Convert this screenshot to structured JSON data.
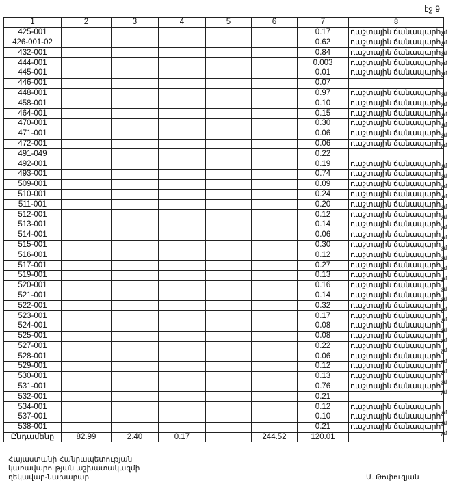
{
  "page_number": "էջ 9",
  "table": {
    "headers": [
      "1",
      "2",
      "3",
      "4",
      "5",
      "6",
      "7",
      "8"
    ],
    "rows": [
      {
        "id": "425-001",
        "c7": "0.17",
        "c8": "դաշտային ճանապարհ",
        "mark": "չմ"
      },
      {
        "id": "426-001-02",
        "c7": "0.62",
        "c8": "դաշտային ճանապարհ",
        "mark": "չմ"
      },
      {
        "id": "432-001",
        "c7": "0.84",
        "c8": "դաշտային ճանապարհ",
        "mark": "չմ"
      },
      {
        "id": "444-001",
        "c7": "0.003",
        "c8": "դաշտային ճանապարհ",
        "mark": "չմ"
      },
      {
        "id": "445-001",
        "c7": "0.01",
        "c8": "դաշտային ճանապարհ",
        "mark": "չմ"
      },
      {
        "id": "446-001",
        "c7": "0.07",
        "c8": "",
        "mark": ""
      },
      {
        "id": "448-001",
        "c7": "0.97",
        "c8": "դաշտային ճանապարհ",
        "mark": "չմ"
      },
      {
        "id": "458-001",
        "c7": "0.10",
        "c8": "դաշտային ճանապարհ",
        "mark": "չմ"
      },
      {
        "id": "464-001",
        "c7": "0.15",
        "c8": "դաշտային ճանապարհ",
        "mark": "չմ"
      },
      {
        "id": "470-001",
        "c7": "0.30",
        "c8": "դաշտային ճանապարհ",
        "mark": "չմ"
      },
      {
        "id": "471-001",
        "c7": "0.06",
        "c8": "դաշտային ճանապարհ",
        "mark": "չմ"
      },
      {
        "id": "472-001",
        "c7": "0.06",
        "c8": "դաշտային ճանապարհ",
        "mark": "չմ"
      },
      {
        "id": "491-049",
        "c7": "0.22",
        "c8": "",
        "mark": ""
      },
      {
        "id": "492-001",
        "c7": "0.19",
        "c8": "դաշտային ճանապարհ",
        "mark": "չմ"
      },
      {
        "id": "493-001",
        "c7": "0.74",
        "c8": "դաշտային ճանապարհ",
        "mark": "չմ"
      },
      {
        "id": "509-001",
        "c7": "0.09",
        "c8": "դաշտային ճանապարհ",
        "mark": "չմ"
      },
      {
        "id": "510-001",
        "c7": "0.24",
        "c8": "դաշտային ճանապարհ",
        "mark": "չմ"
      },
      {
        "id": "511-001",
        "c7": "0.20",
        "c8": "դաշտային ճանապարհ",
        "mark": "չմ"
      },
      {
        "id": "512-001",
        "c7": "0.12",
        "c8": "դաշտային ճանապարհ",
        "mark": "չմ"
      },
      {
        "id": "513-001",
        "c7": "0.14",
        "c8": "դաշտային ճանապարհ",
        "mark": "չմ"
      },
      {
        "id": "514-001",
        "c7": "0.06",
        "c8": "դաշտային ճանապարհ",
        "mark": "չմ"
      },
      {
        "id": "515-001",
        "c7": "0.30",
        "c8": "դաշտային ճանապարհ",
        "mark": "չմ"
      },
      {
        "id": "516-001",
        "c7": "0.12",
        "c8": "դաշտային ճանապարհ",
        "mark": "չմ"
      },
      {
        "id": "517-001",
        "c7": "0.27",
        "c8": "դաշտային ճանապարհ",
        "mark": "չմ"
      },
      {
        "id": "519-001",
        "c7": "0.13",
        "c8": "դաշտային ճանապարհ",
        "mark": "չմ"
      },
      {
        "id": "520-001",
        "c7": "0.16",
        "c8": "դաշտային ճանապարհ",
        "mark": "չմ"
      },
      {
        "id": "521-001",
        "c7": "0.14",
        "c8": "դաշտային ճանապարհ",
        "mark": "չմ"
      },
      {
        "id": "522-001",
        "c7": "0.32",
        "c8": "դաշտային ճանապարհ",
        "mark": "չմ"
      },
      {
        "id": "523-001",
        "c7": "0.17",
        "c8": "դաշտային ճանապարհ",
        "mark": "չմ"
      },
      {
        "id": "524-001",
        "c7": "0.08",
        "c8": "դաշտային ճանապարհ",
        "mark": "չմ"
      },
      {
        "id": "525-001",
        "c7": "0.08",
        "c8": "դաշտային ճանապարհ",
        "mark": "չմ"
      },
      {
        "id": "527-001",
        "c7": "0.22",
        "c8": "դաշտային ճանապարհ",
        "mark": "չմ"
      },
      {
        "id": "528-001",
        "c7": "0.06",
        "c8": "դաշտային ճանապարհ",
        "mark": "չմ"
      },
      {
        "id": "529-001",
        "c7": "0.12",
        "c8": "դաշտային ճանապարհ",
        "mark": "չմ"
      },
      {
        "id": "530-001",
        "c7": "0.13",
        "c8": "դաշտային ճանապարհ",
        "mark": "չմ"
      },
      {
        "id": "531-001",
        "c7": "0.76",
        "c8": "դաշտային ճանապարհ",
        "mark": "չմ"
      },
      {
        "id": "532-001",
        "c7": "0.21",
        "c8": "",
        "mark": ""
      },
      {
        "id": "534-001",
        "c7": "0.12",
        "c8": "դաշտային ճանապարհ",
        "mark": "չմ"
      },
      {
        "id": "537-001",
        "c7": "0.10",
        "c8": "դաշտային ճանապարհ",
        "mark": "չմ"
      },
      {
        "id": "538-001",
        "c7": "0.21",
        "c8": "դաշտային ճանապարհ",
        "mark": "չմ"
      }
    ],
    "total": {
      "label": "Ընդամենը",
      "c2": "82.99",
      "c3": "2.40",
      "c4": "0.17",
      "c5": "",
      "c6": "244.52",
      "c7": "120.01",
      "c8": ""
    }
  },
  "footer": {
    "lines": [
      "Հայաստանի Հանրապետության",
      "կառավարության աշխատակազմի",
      "ղեկավար-նախարար"
    ],
    "signer": "Մ. Թոփուզյան"
  }
}
